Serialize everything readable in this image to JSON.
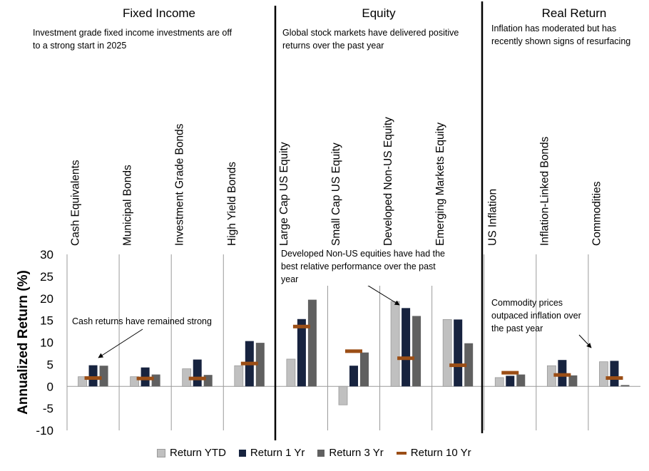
{
  "sections": [
    {
      "title": "Fixed Income",
      "desc": [
        "Investment grade fixed income investments are off",
        "to a strong start in 2025"
      ]
    },
    {
      "title": "Equity",
      "desc": [
        "Global stock markets have delivered positive",
        "returns over the past year"
      ]
    },
    {
      "title": "Real Return",
      "desc": [
        "Inflation has moderated but has",
        "recently shown signs of resurfacing"
      ]
    }
  ],
  "annotations": {
    "cash": "Cash returns have remained strong",
    "dev": [
      "Developed Non-US equities have had the",
      "best relative performance over the past",
      "year"
    ],
    "commodity": [
      "Commodity prices",
      "outpaced inflation over",
      "the past year"
    ]
  },
  "colors": {
    "ytd": "#c0c0c0",
    "y1": "#17233f",
    "y3": "#606060",
    "y10": "#9b4e16",
    "ytd_border": "#9a9a9a"
  },
  "chart_data": {
    "type": "bar",
    "categories": [
      "Cash Equivalents",
      "Municipal Bonds",
      "Investment Grade Bonds",
      "High Yield Bonds",
      "Large Cap US Equity",
      "Small  Cap US Equity",
      "Developed Non-US Equity",
      "Emerging Markets Equity",
      "US Inflation",
      "Inflation-Linked Bonds",
      "Commodities"
    ],
    "series": [
      {
        "name": "Return YTD",
        "kind": "bar",
        "values": [
          2.2,
          2.2,
          4.0,
          4.7,
          6.2,
          -4.2,
          19.3,
          15.2,
          2.0,
          4.7,
          5.6
        ]
      },
      {
        "name": "Return 1 Yr",
        "kind": "bar",
        "values": [
          4.8,
          4.3,
          6.1,
          10.3,
          15.3,
          4.7,
          17.8,
          15.2,
          2.4,
          6.0,
          5.8
        ]
      },
      {
        "name": "Return 3 Yr",
        "kind": "bar",
        "values": [
          4.7,
          2.7,
          2.6,
          9.9,
          19.7,
          7.7,
          16.0,
          9.8,
          2.7,
          2.5,
          0.3
        ]
      },
      {
        "name": "Return 10 Yr",
        "kind": "marker",
        "values": [
          1.9,
          1.8,
          1.8,
          5.2,
          13.6,
          8.0,
          6.4,
          4.8,
          3.1,
          2.6,
          1.9
        ]
      }
    ],
    "ylabel": "Annualized Return (%)",
    "ylim": [
      -10,
      30
    ],
    "yticks": [
      "30",
      "25",
      "20",
      "15",
      "10",
      "5",
      "0",
      "-5",
      "-10"
    ],
    "legend_position": "bottom"
  }
}
